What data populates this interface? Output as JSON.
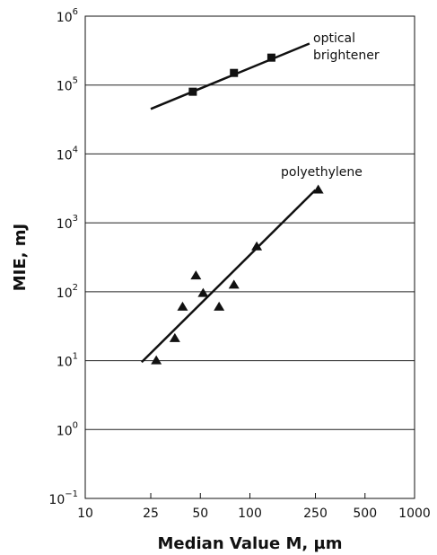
{
  "chart_data": {
    "type": "scatter",
    "title": "",
    "xlabel": "Median Value M, µm",
    "ylabel": "MIE, mJ",
    "x_scale": "log",
    "y_scale": "log",
    "xlim": [
      10,
      1000
    ],
    "ylim": [
      0.1,
      1000000
    ],
    "grid": "horizontal",
    "x_ticks": [
      {
        "value": 10,
        "label": "10"
      },
      {
        "value": 25,
        "label": "25"
      },
      {
        "value": 50,
        "label": "50"
      },
      {
        "value": 100,
        "label": "100"
      },
      {
        "value": 250,
        "label": "250"
      },
      {
        "value": 500,
        "label": "500"
      },
      {
        "value": 1000,
        "label": "1000"
      }
    ],
    "y_ticks": [
      {
        "value": 0.1,
        "base": "10",
        "exp": "−1"
      },
      {
        "value": 1,
        "base": "10",
        "exp": "0"
      },
      {
        "value": 10,
        "base": "10",
        "exp": "1"
      },
      {
        "value": 100,
        "base": "10",
        "exp": "2"
      },
      {
        "value": 1000,
        "base": "10",
        "exp": "3"
      },
      {
        "value": 10000,
        "base": "10",
        "exp": "4"
      },
      {
        "value": 100000,
        "base": "10",
        "exp": "5"
      },
      {
        "value": 1000000,
        "base": "10",
        "exp": "6"
      }
    ],
    "series": [
      {
        "name": "optical brightener",
        "label_lines": [
          "optical",
          "brightener"
        ],
        "marker": "square",
        "points": [
          {
            "x": 45,
            "y": 80000
          },
          {
            "x": 80,
            "y": 150000
          },
          {
            "x": 135,
            "y": 250000
          }
        ],
        "fit_line": [
          {
            "x": 25,
            "y": 45000
          },
          {
            "x": 230,
            "y": 400000
          }
        ]
      },
      {
        "name": "polyethylene",
        "label_lines": [
          "polyethylene"
        ],
        "marker": "triangle",
        "points": [
          {
            "x": 27,
            "y": 10
          },
          {
            "x": 35,
            "y": 21
          },
          {
            "x": 39,
            "y": 60
          },
          {
            "x": 47,
            "y": 170
          },
          {
            "x": 52,
            "y": 95
          },
          {
            "x": 65,
            "y": 60
          },
          {
            "x": 80,
            "y": 125
          },
          {
            "x": 110,
            "y": 450
          },
          {
            "x": 260,
            "y": 3000
          }
        ],
        "fit_line": [
          {
            "x": 22,
            "y": 9.5
          },
          {
            "x": 250,
            "y": 3000
          }
        ]
      }
    ]
  }
}
